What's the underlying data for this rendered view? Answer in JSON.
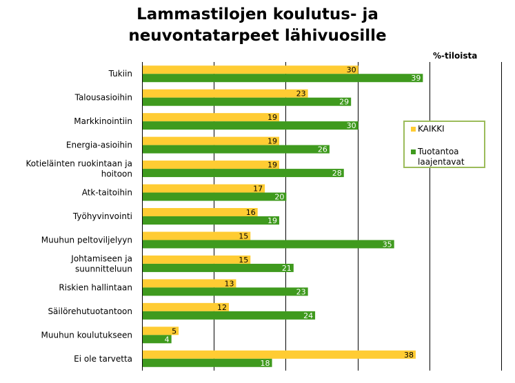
{
  "title_lines": [
    "Lammastilojen koulutus- ja",
    "neuvontatarpeet lähivuosille"
  ],
  "unit_label": "%-tiloista",
  "chart_data": {
    "type": "bar",
    "orientation": "horizontal",
    "title": "Lammastilojen koulutus- ja neuvontatarpeet lähivuosille",
    "categories": [
      [
        "Tukiin"
      ],
      [
        "Talousasioihin"
      ],
      [
        "Markkinointiin"
      ],
      [
        "Energia-asioihin"
      ],
      [
        "Kotieläinten ruokintaan ja",
        "hoitoon"
      ],
      [
        "Atk-taitoihin"
      ],
      [
        "Työhyvinvointi"
      ],
      [
        "Muuhun peltoviljelyyn"
      ],
      [
        "Johtamiseen ja",
        "suunnitteluun"
      ],
      [
        "Riskien hallintaan"
      ],
      [
        "Säilörehutuotantoon"
      ],
      [
        "Muuhun koulutukseen"
      ],
      [
        "Ei ole tarvetta"
      ]
    ],
    "series": [
      {
        "name": "KAIKKI",
        "color": "#ffcc33",
        "values": [
          30,
          23,
          19,
          19,
          19,
          17,
          16,
          15,
          15,
          13,
          12,
          5,
          38
        ]
      },
      {
        "name": "Tuotantoa laajentavat",
        "color": "#3f9a1e",
        "values": [
          39,
          29,
          30,
          26,
          28,
          20,
          19,
          35,
          21,
          23,
          24,
          4,
          18
        ]
      }
    ],
    "xlim": [
      0,
      50
    ],
    "grid_step": 10,
    "grid": true,
    "legend_position": "right"
  },
  "legend": {
    "border_color": "#9bbb59",
    "items": [
      {
        "lines": [
          "KAIKKI"
        ],
        "color": "#ffcc33"
      },
      {
        "lines": [
          "Tuotantoa",
          "laajentavat"
        ],
        "color": "#3f9a1e"
      }
    ]
  }
}
